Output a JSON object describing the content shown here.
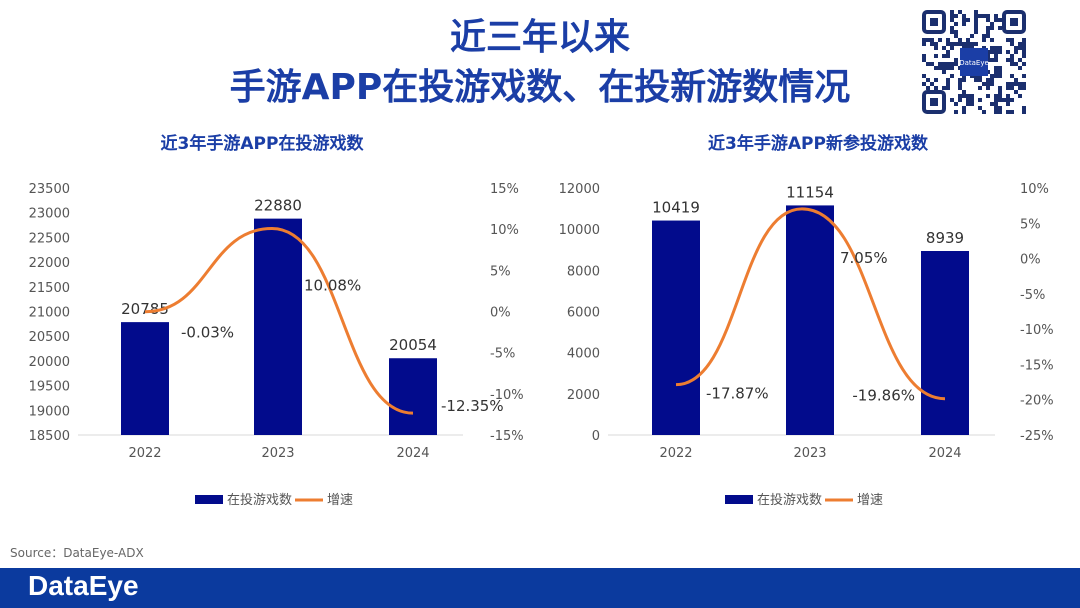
{
  "header": {
    "title_line1": "近三年以来",
    "title_line2": "手游APP在投游戏数、在投新游数情况",
    "qr_logo": "DataEye"
  },
  "source": "Source：DataEye-ADX",
  "footer": {
    "logo": "DataEye"
  },
  "colors": {
    "bar": "#020b8c",
    "line": "#ed7d31",
    "title": "#1b3ea6"
  },
  "chart_data": [
    {
      "type": "bar+line",
      "title": "近3年手游APP在投游戏数",
      "categories": [
        "2022",
        "2023",
        "2024"
      ],
      "series": [
        {
          "name": "在投游戏数",
          "type": "bar",
          "axis": "left",
          "values": [
            20785,
            22880,
            20054
          ],
          "labels": [
            "20785",
            "22880",
            "20054"
          ]
        },
        {
          "name": "增速",
          "type": "line",
          "axis": "right",
          "values": [
            -0.03,
            10.08,
            -12.35
          ],
          "labels": [
            "-0.03%",
            "10.08%",
            "-12.35%"
          ]
        }
      ],
      "ylim_left": [
        18500,
        23500
      ],
      "yticks_left": [
        "23500",
        "23000",
        "22500",
        "22000",
        "21500",
        "21000",
        "20500",
        "20000",
        "19500",
        "19000",
        "18500"
      ],
      "ylim_right": [
        -15,
        15
      ],
      "yticks_right": [
        "15%",
        "10%",
        "5%",
        "0%",
        "-5%",
        "-10%",
        "-15%"
      ],
      "legend": "bottom",
      "grid": false
    },
    {
      "type": "bar+line",
      "title": "近3年手游APP新参投游戏数",
      "categories": [
        "2022",
        "2023",
        "2024"
      ],
      "series": [
        {
          "name": "在投游戏数",
          "type": "bar",
          "axis": "left",
          "values": [
            10419,
            11154,
            8939
          ],
          "labels": [
            "10419",
            "11154",
            "8939"
          ]
        },
        {
          "name": "增速",
          "type": "line",
          "axis": "right",
          "values": [
            -17.87,
            7.05,
            -19.86
          ],
          "labels": [
            "-17.87%",
            "7.05%",
            "-19.86%"
          ]
        }
      ],
      "ylim_left": [
        0,
        12000
      ],
      "yticks_left": [
        "12000",
        "10000",
        "8000",
        "6000",
        "4000",
        "2000",
        "0"
      ],
      "ylim_right": [
        -25,
        10
      ],
      "yticks_right": [
        "10%",
        "5%",
        "0%",
        "-5%",
        "-10%",
        "-15%",
        "-20%",
        "-25%"
      ],
      "legend": "bottom",
      "grid": false
    }
  ]
}
